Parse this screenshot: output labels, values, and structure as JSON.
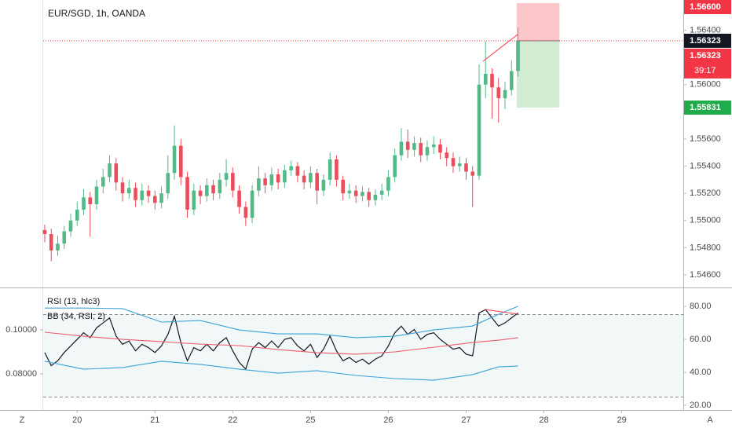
{
  "chart_data": [
    {
      "type": "candlestick",
      "title": "EUR/SGD, 1h, OANDA",
      "x": [
        0,
        1,
        2,
        3,
        4,
        5,
        6,
        7,
        8,
        9,
        10,
        11,
        12,
        13,
        14,
        15,
        16,
        17,
        18,
        19,
        20,
        21,
        22,
        23,
        24,
        25,
        26,
        27,
        28,
        29,
        30,
        31,
        32,
        33,
        34,
        35,
        36,
        37,
        38,
        39,
        40,
        41,
        42,
        43,
        44,
        45,
        46,
        47,
        48,
        49,
        50,
        51,
        52,
        53,
        54,
        55,
        56,
        57,
        58,
        59,
        60,
        61,
        62,
        63,
        64,
        65,
        66,
        67,
        68,
        69,
        70,
        71,
        72,
        73
      ],
      "open": [
        1.5493,
        1.549,
        1.5478,
        1.5483,
        1.5492,
        1.55,
        1.5508,
        1.5517,
        1.5512,
        1.5525,
        1.5532,
        1.5542,
        1.5528,
        1.552,
        1.5524,
        1.5515,
        1.5522,
        1.5518,
        1.5513,
        1.552,
        1.5535,
        1.5555,
        1.5532,
        1.5508,
        1.5522,
        1.5518,
        1.5526,
        1.552,
        1.553,
        1.5535,
        1.5522,
        1.551,
        1.5502,
        1.5522,
        1.5531,
        1.5526,
        1.5534,
        1.5528,
        1.5537,
        1.554,
        1.5533,
        1.5528,
        1.5535,
        1.5522,
        1.553,
        1.5545,
        1.553,
        1.552,
        1.5522,
        1.5518,
        1.5521,
        1.5515,
        1.5519,
        1.5522,
        1.5532,
        1.5548,
        1.5558,
        1.5552,
        1.5557,
        1.5548,
        1.5554,
        1.5556,
        1.555,
        1.5546,
        1.554,
        1.5542,
        1.5536,
        1.5533,
        1.56,
        1.5608,
        1.5598,
        1.559,
        1.5596,
        1.561
      ],
      "high": [
        1.5497,
        1.5494,
        1.5489,
        1.5496,
        1.5505,
        1.5514,
        1.5523,
        1.5521,
        1.553,
        1.5538,
        1.5548,
        1.5546,
        1.5532,
        1.553,
        1.5528,
        1.5527,
        1.5526,
        1.5522,
        1.5525,
        1.5548,
        1.557,
        1.556,
        1.5536,
        1.5527,
        1.5526,
        1.5531,
        1.553,
        1.5535,
        1.5545,
        1.5539,
        1.5526,
        1.5514,
        1.5526,
        1.554,
        1.5535,
        1.5539,
        1.5538,
        1.5541,
        1.5544,
        1.5543,
        1.5537,
        1.554,
        1.5538,
        1.5534,
        1.555,
        1.5548,
        1.5533,
        1.5527,
        1.5526,
        1.5525,
        1.5524,
        1.5523,
        1.5527,
        1.5537,
        1.5553,
        1.5568,
        1.5567,
        1.5562,
        1.5561,
        1.5559,
        1.5562,
        1.556,
        1.5554,
        1.555,
        1.5547,
        1.5546,
        1.554,
        1.5615,
        1.5632,
        1.5612,
        1.5605,
        1.5602,
        1.5618,
        1.5642
      ],
      "low": [
        1.5484,
        1.547,
        1.5474,
        1.5479,
        1.5488,
        1.5496,
        1.5504,
        1.5488,
        1.5508,
        1.552,
        1.5528,
        1.5522,
        1.5514,
        1.5516,
        1.551,
        1.5511,
        1.5513,
        1.5508,
        1.5509,
        1.5516,
        1.553,
        1.5526,
        1.5502,
        1.5504,
        1.5512,
        1.5514,
        1.5515,
        1.5516,
        1.5525,
        1.5517,
        1.5505,
        1.5496,
        1.5498,
        1.5518,
        1.552,
        1.5522,
        1.5523,
        1.5524,
        1.5533,
        1.5528,
        1.5523,
        1.5524,
        1.5512,
        1.5518,
        1.5526,
        1.5525,
        1.5515,
        1.5516,
        1.5513,
        1.5514,
        1.551,
        1.5511,
        1.5515,
        1.5518,
        1.5528,
        1.5544,
        1.5546,
        1.5547,
        1.5543,
        1.5544,
        1.5549,
        1.5545,
        1.554,
        1.5535,
        1.5536,
        1.553,
        1.551,
        1.553,
        1.559,
        1.5575,
        1.5572,
        1.5582,
        1.5592,
        1.5606
      ],
      "close": [
        1.549,
        1.5478,
        1.5483,
        1.5492,
        1.55,
        1.5508,
        1.5517,
        1.5512,
        1.5525,
        1.5532,
        1.5542,
        1.5528,
        1.552,
        1.5524,
        1.5515,
        1.5522,
        1.5518,
        1.5513,
        1.552,
        1.5535,
        1.5555,
        1.5532,
        1.5508,
        1.5522,
        1.5518,
        1.5526,
        1.552,
        1.553,
        1.5535,
        1.5522,
        1.551,
        1.5502,
        1.5522,
        1.5531,
        1.5526,
        1.5534,
        1.5528,
        1.5537,
        1.554,
        1.5533,
        1.5528,
        1.5535,
        1.5522,
        1.553,
        1.5545,
        1.553,
        1.552,
        1.5522,
        1.5518,
        1.5521,
        1.5515,
        1.5519,
        1.5522,
        1.5532,
        1.5548,
        1.5558,
        1.5552,
        1.5557,
        1.5548,
        1.5554,
        1.5556,
        1.555,
        1.5546,
        1.554,
        1.5542,
        1.5536,
        1.5533,
        1.56,
        1.5608,
        1.5598,
        1.559,
        1.5596,
        1.561,
        1.56323
      ],
      "up_color": "#53b987",
      "down_color": "#eb4d5c",
      "xlim": [
        -0.24,
        98.5
      ],
      "xticks": [
        {
          "value": 5,
          "label": "20"
        },
        {
          "value": 17,
          "label": "21"
        },
        {
          "value": 29,
          "label": "22"
        },
        {
          "value": 41,
          "label": "25"
        },
        {
          "value": 53,
          "label": "26"
        },
        {
          "value": 65,
          "label": "27"
        },
        {
          "value": 77,
          "label": "28"
        },
        {
          "value": 89,
          "label": "29"
        }
      ],
      "ylim": [
        1.54513,
        1.56623
      ],
      "yticks": [
        {
          "value": 1.564,
          "label": "1.56400"
        },
        {
          "value": 1.56,
          "label": "1.56000"
        },
        {
          "value": 1.556,
          "label": "1.55600"
        },
        {
          "value": 1.554,
          "label": "1.55400"
        },
        {
          "value": 1.552,
          "label": "1.55200"
        },
        {
          "value": 1.55,
          "label": "1.55000"
        },
        {
          "value": 1.548,
          "label": "1.54800"
        },
        {
          "value": 1.546,
          "label": "1.54600"
        }
      ],
      "position": {
        "x": [
          72.8,
          79.4
        ],
        "stop": 1.566,
        "entry": 1.56323,
        "target": 1.55831
      },
      "price_labels": [
        {
          "value": 1.566,
          "label": "1.56600",
          "color": "#f23645"
        },
        {
          "value": 1.56323,
          "label": "1.56323",
          "color": "#131722"
        },
        {
          "value": 1.56323,
          "label": "1.56323",
          "color": "#f23645",
          "sub": "39:17"
        },
        {
          "value": 1.55831,
          "label": "1.55831",
          "color": "#22ab4a"
        }
      ]
    },
    {
      "type": "line",
      "x": [
        0,
        1,
        2,
        3,
        4,
        5,
        6,
        7,
        8,
        9,
        10,
        11,
        12,
        13,
        14,
        15,
        16,
        17,
        18,
        19,
        20,
        21,
        22,
        23,
        24,
        25,
        26,
        27,
        28,
        29,
        30,
        31,
        32,
        33,
        34,
        35,
        36,
        37,
        38,
        39,
        40,
        41,
        42,
        43,
        44,
        45,
        46,
        47,
        48,
        49,
        50,
        51,
        52,
        53,
        54,
        55,
        56,
        57,
        58,
        59,
        60,
        61,
        62,
        63,
        64,
        65,
        66,
        67,
        68,
        69,
        70,
        71,
        72,
        73
      ],
      "xlim": [
        -0.24,
        98.5
      ],
      "ylim": [
        18.1,
        90.5
      ],
      "yticks": [
        {
          "value": 80,
          "label": "80.00"
        },
        {
          "value": 60,
          "label": "60.00"
        },
        {
          "value": 40,
          "label": "40.00"
        },
        {
          "value": 20,
          "label": "20.00"
        }
      ],
      "y2lim": [
        0.06429,
        0.11857
      ],
      "y2ticks": [
        {
          "value": 0.1,
          "label": "0.10000"
        },
        {
          "value": 0.08,
          "label": "0.08000"
        }
      ],
      "band": [
        25,
        75
      ],
      "series": [
        {
          "name": "RSI (13, hlc3)",
          "color": "#131722",
          "values": [
            52,
            44,
            47,
            52,
            56,
            60,
            64,
            61,
            67,
            70,
            73,
            62,
            57,
            59,
            53,
            57,
            55,
            52,
            56,
            63,
            74,
            58,
            47,
            55,
            53,
            57,
            53,
            58,
            61,
            53,
            46,
            42,
            54,
            58,
            55,
            59,
            55,
            60,
            61,
            56,
            53,
            57,
            49,
            54,
            62,
            53,
            47,
            49,
            46,
            48,
            45,
            48,
            50,
            56,
            64,
            68,
            63,
            66,
            60,
            63,
            64,
            60,
            57,
            54,
            55,
            51,
            50,
            76,
            78,
            73,
            68,
            70,
            73,
            76
          ]
        },
        {
          "name": "BB (34, RSI, 2)",
          "color": "#3ba3d9",
          "x": [
            0,
            6,
            12,
            18,
            24,
            30,
            36,
            42,
            48,
            54,
            60,
            66,
            70,
            73
          ],
          "values": [
            79.0,
            79.0,
            78.6,
            70.5,
            71.4,
            65.7,
            63.3,
            63.3,
            61.0,
            61.9,
            65.7,
            68.1,
            75.2,
            80.0
          ]
        },
        {
          "color": "#3ba3d9",
          "x": [
            0,
            6,
            12,
            18,
            24,
            30,
            36,
            42,
            48,
            54,
            60,
            66,
            70,
            73
          ],
          "values": [
            46.7,
            41.9,
            42.9,
            46.7,
            44.8,
            41.9,
            39.5,
            41.0,
            38.1,
            36.2,
            35.2,
            38.6,
            43.3,
            43.8
          ]
        },
        {
          "color": "#ef5b6b",
          "x": [
            0,
            6,
            12,
            18,
            24,
            30,
            36,
            42,
            48,
            54,
            60,
            66,
            70,
            73
          ],
          "values": [
            64.3,
            61.9,
            60.0,
            58.6,
            57.1,
            56.2,
            53.8,
            51.9,
            51.0,
            52.4,
            55.2,
            58.1,
            59.5,
            61.0
          ]
        }
      ]
    }
  ],
  "ui": {
    "left_button": "Z",
    "right_button": "A"
  }
}
